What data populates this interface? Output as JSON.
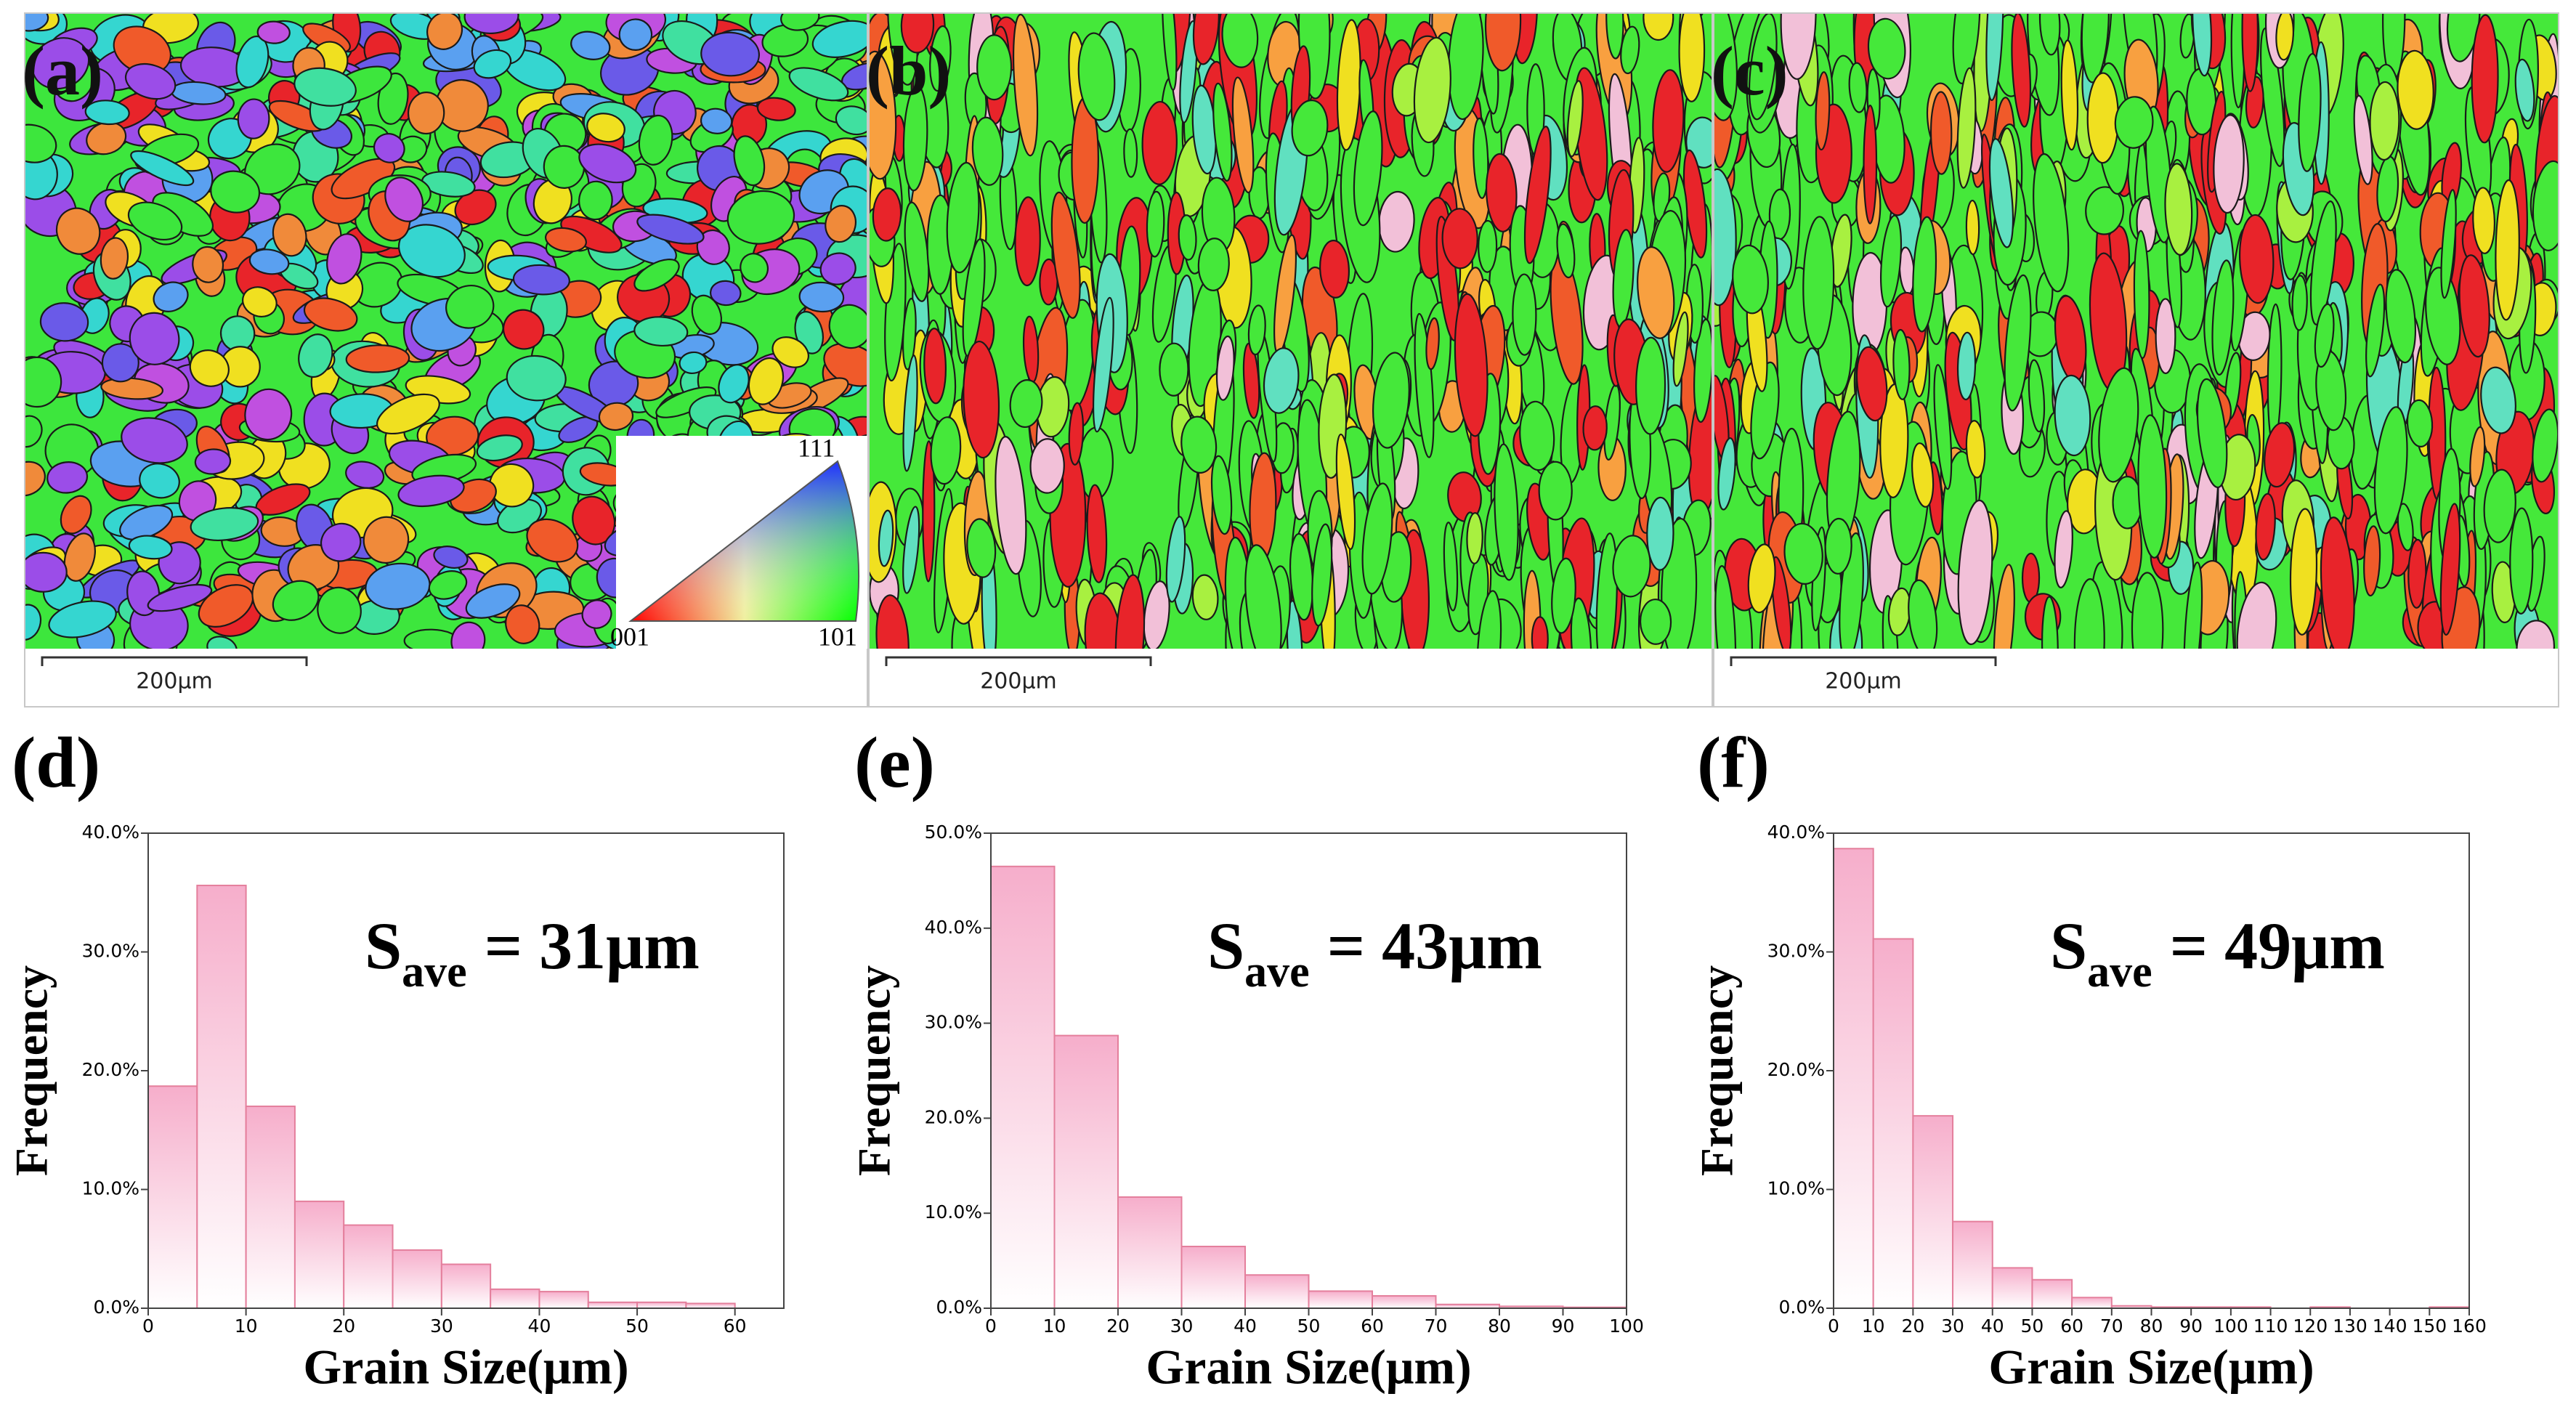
{
  "maps": [
    {
      "label": "(a)",
      "scale_bar": "200μm",
      "ipf": {
        "top": "111",
        "left": "001",
        "right": "101"
      }
    },
    {
      "label": "(b)",
      "scale_bar": "200μm"
    },
    {
      "label": "(c)",
      "scale_bar": "200μm"
    }
  ],
  "chart_data": [
    {
      "type": "histogram",
      "label": "(d)",
      "annotation": {
        "symbol": "S",
        "subscript": "ave",
        "text": "= 31μm"
      },
      "xlabel": "Grain Size(μm)",
      "ylabel": "Frequency",
      "bins": [
        0,
        5,
        10,
        15,
        20,
        25,
        30,
        35,
        40,
        45,
        50,
        55,
        60
      ],
      "values": [
        18.7,
        35.6,
        17.0,
        9.0,
        7.0,
        4.9,
        3.7,
        1.6,
        1.4,
        0.5,
        0.5,
        0.4
      ],
      "xlim": [
        0,
        65
      ],
      "ylim": [
        0,
        40
      ],
      "xticks": [
        0,
        10,
        20,
        30,
        40,
        50,
        60
      ],
      "yticks": [
        {
          "value": 0,
          "label": "0.0%"
        },
        {
          "value": 10,
          "label": "10.0%"
        },
        {
          "value": 20,
          "label": "20.0%"
        },
        {
          "value": 30,
          "label": "30.0%"
        },
        {
          "value": 40,
          "label": "40.0%"
        }
      ],
      "color": "#f6aecb",
      "edgecolor": "#e47f9c"
    },
    {
      "type": "histogram",
      "label": "(e)",
      "annotation": {
        "symbol": "S",
        "subscript": "ave",
        "text": "= 43μm"
      },
      "xlabel": "Grain Size(μm)",
      "ylabel": "Frequency",
      "bins": [
        0,
        10,
        20,
        30,
        40,
        50,
        60,
        70,
        80,
        90,
        100
      ],
      "values": [
        46.5,
        28.7,
        11.7,
        6.5,
        3.5,
        1.8,
        1.3,
        0.4,
        0.2,
        0.1
      ],
      "xlim": [
        0,
        100
      ],
      "ylim": [
        0,
        50
      ],
      "xticks": [
        0,
        10,
        20,
        30,
        40,
        50,
        60,
        70,
        80,
        90,
        100
      ],
      "yticks": [
        {
          "value": 0,
          "label": "0.0%"
        },
        {
          "value": 10,
          "label": "10.0%"
        },
        {
          "value": 20,
          "label": "20.0%"
        },
        {
          "value": 30,
          "label": "30.0%"
        },
        {
          "value": 40,
          "label": "40.0%"
        },
        {
          "value": 50,
          "label": "50.0%"
        }
      ],
      "color": "#f6aecb",
      "edgecolor": "#e47f9c"
    },
    {
      "type": "histogram",
      "label": "(f)",
      "annotation": {
        "symbol": "S",
        "subscript": "ave",
        "text": "= 49μm"
      },
      "xlabel": "Grain Size(μm)",
      "ylabel": "Frequency",
      "bins": [
        0,
        10,
        20,
        30,
        40,
        50,
        60,
        70,
        80,
        90,
        100,
        110,
        120,
        130,
        140,
        150,
        160
      ],
      "values": [
        38.7,
        31.1,
        16.2,
        7.3,
        3.4,
        2.4,
        0.9,
        0.2,
        0.1,
        0.1,
        0.1,
        0.0,
        0.1,
        0.0,
        0.0,
        0.1
      ],
      "xlim": [
        0,
        160
      ],
      "ylim": [
        0,
        40
      ],
      "xticks": [
        0,
        10,
        20,
        30,
        40,
        50,
        60,
        70,
        80,
        90,
        100,
        110,
        120,
        130,
        140,
        150,
        160
      ],
      "yticks": [
        {
          "value": 0,
          "label": "0.0%"
        },
        {
          "value": 10,
          "label": "10.0%"
        },
        {
          "value": 20,
          "label": "20.0%"
        },
        {
          "value": 30,
          "label": "30.0%"
        },
        {
          "value": 40,
          "label": "40.0%"
        }
      ],
      "color": "#f6aecb",
      "edgecolor": "#e47f9c"
    }
  ]
}
